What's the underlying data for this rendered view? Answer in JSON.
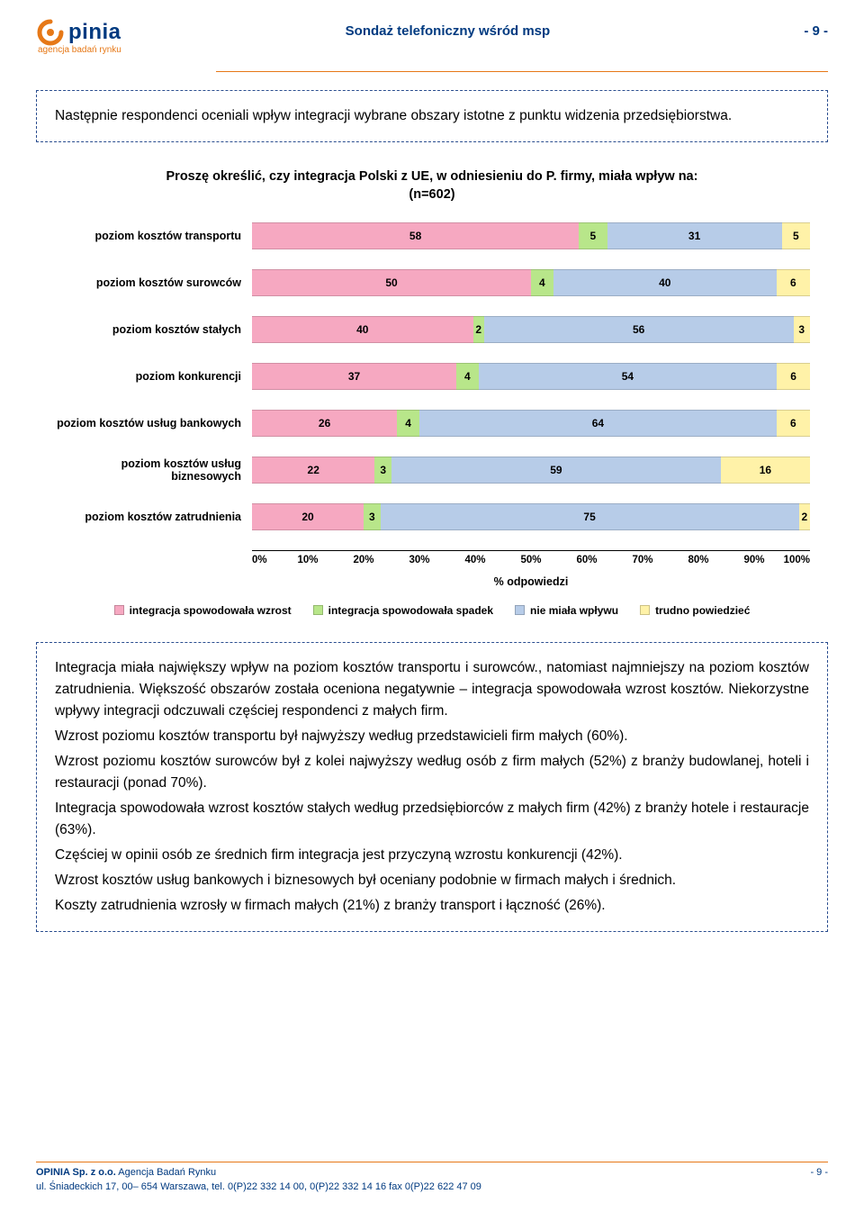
{
  "header": {
    "logo_text": "pinia",
    "logo_sub": "agencja badań rynku",
    "title": "Sondaż telefoniczny wśród msp",
    "page_label": "- 9 -"
  },
  "intro": {
    "text": "Następnie respondenci oceniali wpływ integracji wybrane obszary istotne z punktu widzenia przedsiębiorstwa."
  },
  "chart": {
    "type": "stacked-bar-horizontal",
    "title_line1": "Proszę określić, czy integracja Polski z UE, w odniesieniu do P. firmy, miała wpływ na:",
    "title_line2": "(n=602)",
    "x_label": "% odpowiedzi",
    "x_ticks": [
      "0%",
      "10%",
      "20%",
      "30%",
      "40%",
      "50%",
      "60%",
      "70%",
      "80%",
      "90%",
      "100%"
    ],
    "colors": {
      "wzrost": "#f6a8c1",
      "spadek": "#b8e68a",
      "brak": "#b7cce8",
      "trudno": "#fff2a8",
      "grid": "#000000",
      "bg": "#ffffff"
    },
    "legend": [
      {
        "label": "integracja spowodowała wzrost",
        "color_key": "wzrost"
      },
      {
        "label": "integracja spowodowała spadek",
        "color_key": "spadek"
      },
      {
        "label": "nie miała wpływu",
        "color_key": "brak"
      },
      {
        "label": "trudno powiedzieć",
        "color_key": "trudno"
      }
    ],
    "rows": [
      {
        "label": "poziom kosztów transportu",
        "values": [
          58,
          5,
          31,
          5
        ],
        "show_labels": [
          true,
          true,
          true,
          true
        ]
      },
      {
        "label": "poziom kosztów surowców",
        "values": [
          50,
          4,
          40,
          6
        ],
        "show_labels": [
          true,
          true,
          true,
          true
        ]
      },
      {
        "label": "poziom kosztów stałych",
        "values": [
          40,
          2,
          56,
          3
        ],
        "show_labels": [
          true,
          true,
          true,
          true
        ]
      },
      {
        "label": "poziom konkurencji",
        "values": [
          37,
          4,
          54,
          6
        ],
        "show_labels": [
          true,
          true,
          true,
          true
        ]
      },
      {
        "label": "poziom kosztów usług bankowych",
        "values": [
          26,
          4,
          64,
          6
        ],
        "show_labels": [
          true,
          true,
          true,
          true
        ]
      },
      {
        "label": "poziom kosztów usług biznesowych",
        "values": [
          22,
          3,
          59,
          16
        ],
        "show_labels": [
          true,
          true,
          true,
          true
        ]
      },
      {
        "label": "poziom kosztów zatrudnienia",
        "values": [
          20,
          3,
          75,
          2
        ],
        "show_labels": [
          true,
          true,
          true,
          true
        ]
      }
    ]
  },
  "body": {
    "paragraphs": [
      "Integracja miała największy wpływ na poziom kosztów transportu i surowców., natomiast najmniejszy na poziom kosztów zatrudnienia. Większość obszarów została oceniona negatywnie – integracja spowodowała wzrost kosztów. Niekorzystne wpływy integracji odczuwali częściej respondenci z małych firm.",
      "Wzrost poziomu kosztów transportu był najwyższy według przedstawicieli firm małych (60%).",
      "Wzrost poziomu kosztów surowców był z kolei najwyższy według osób z firm małych (52%) z branży budowlanej, hoteli i restauracji (ponad 70%).",
      "Integracja spowodowała wzrost kosztów stałych według przedsiębiorców z małych firm (42%) z branży hotele i restauracje (63%).",
      "Częściej w opinii osób ze średnich firm integracja jest przyczyną wzrostu konkurencji (42%).",
      "Wzrost kosztów usług bankowych i biznesowych był oceniany podobnie w firmach małych i średnich.",
      "Koszty zatrudnienia wzrosły w firmach małych (21%) z branży transport i łączność (26%)."
    ]
  },
  "footer": {
    "line1_bold": "OPINIA Sp. z o.o.",
    "line1_rest": " Agencja Badań Rynku",
    "line2": "ul. Śniadeckich 17, 00– 654 Warszawa, tel. 0(P)22 332 14 00, 0(P)22 332 14 16  fax  0(P)22 622 47 09",
    "page_label": "- 9 -"
  }
}
